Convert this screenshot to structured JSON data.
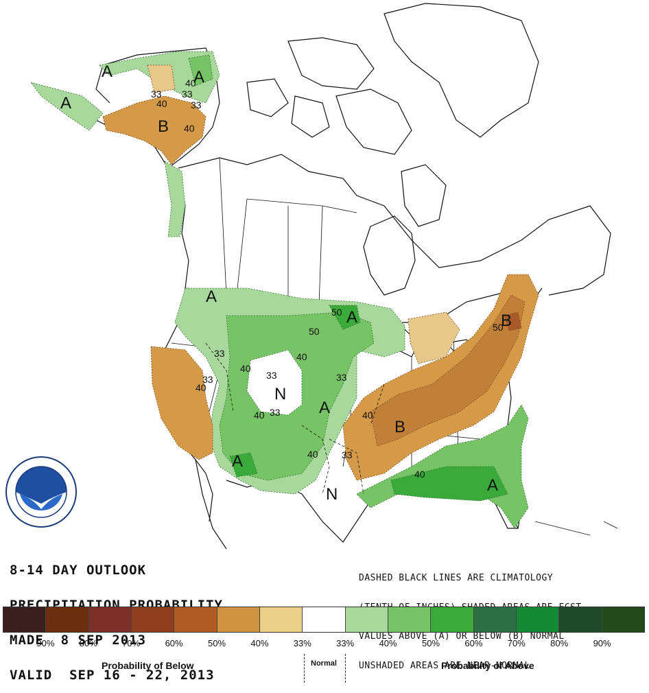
{
  "title_lines": [
    "8-14 DAY OUTLOOK",
    "PRECIPITATION PROBABILITY",
    "MADE  8 SEP 2013",
    "VALID  SEP 16 - 22, 2013"
  ],
  "notes": [
    "DASHED BLACK LINES ARE CLIMATOLOGY",
    "(TENTH OF INCHES) SHADED AREAS ARE FCST",
    "VALUES ABOVE (A) OR BELOW (B) NORMAL",
    "UNSHADED AREAS ARE NEAR-NORMAL"
  ],
  "legend": {
    "below_label": "Probability of Below",
    "normal_label": "Normal",
    "above_label": "Probability of Above",
    "tick_labels": [
      "90%",
      "80%",
      "70%",
      "60%",
      "50%",
      "40%",
      "33%",
      "33%",
      "40%",
      "50%",
      "60%",
      "70%",
      "80%",
      "90%"
    ],
    "colors": [
      "#3a1f1c",
      "#6b2e0e",
      "#7e2f27",
      "#8f3f1f",
      "#b15a22",
      "#cf9440",
      "#ecd089",
      "#ffffff",
      "#a8d89b",
      "#77c466",
      "#3aaa3a",
      "#2d6e44",
      "#138a35",
      "#1f4a2a",
      "#234a1a"
    ]
  },
  "map_labels": {
    "A": "A",
    "B": "B",
    "N": "N",
    "n33": "33",
    "n40": "40",
    "n50": "50"
  },
  "colors": {
    "below_33": "#e8c88a",
    "below_40": "#d49a48",
    "below_50": "#c08038",
    "below_60": "#a85a2a",
    "above_33": "#a8d89b",
    "above_40": "#7cc56c",
    "above_50": "#44a844",
    "coast": "#111111"
  }
}
